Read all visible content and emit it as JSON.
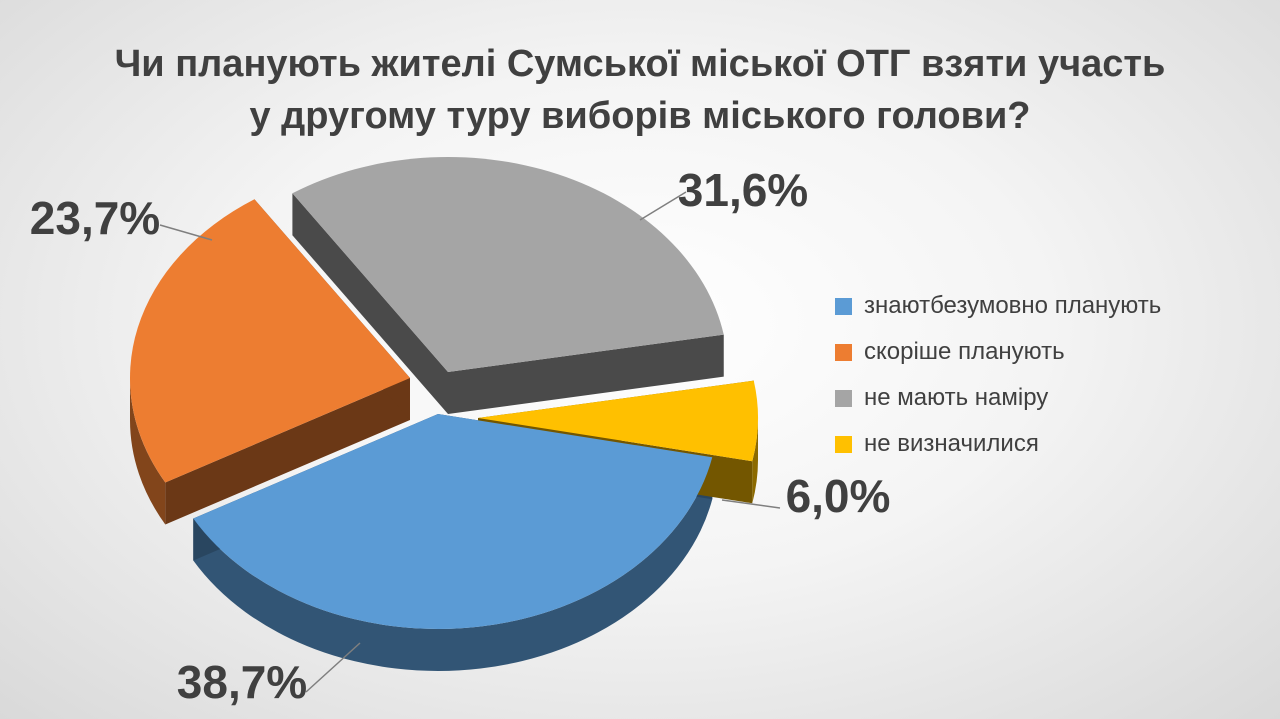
{
  "chart_data": {
    "type": "pie",
    "title_lines": [
      "Чи планують жителі Сумської міської ОТГ взяти участь",
      "у другому туру виборів міського голови?"
    ],
    "categories": [
      "знаютбезумовно планують",
      "скоріше планують",
      "не мають наміру",
      "не визначилися"
    ],
    "values": [
      38.7,
      23.7,
      31.6,
      6.0
    ],
    "data_labels": [
      "38,7%",
      "23,7%",
      "31,6%",
      "6,0%"
    ],
    "colors": [
      "#5B9BD5",
      "#ED7D31",
      "#A5A5A5",
      "#FFC000"
    ],
    "legend_position": "right",
    "style": "3d-exploded"
  }
}
